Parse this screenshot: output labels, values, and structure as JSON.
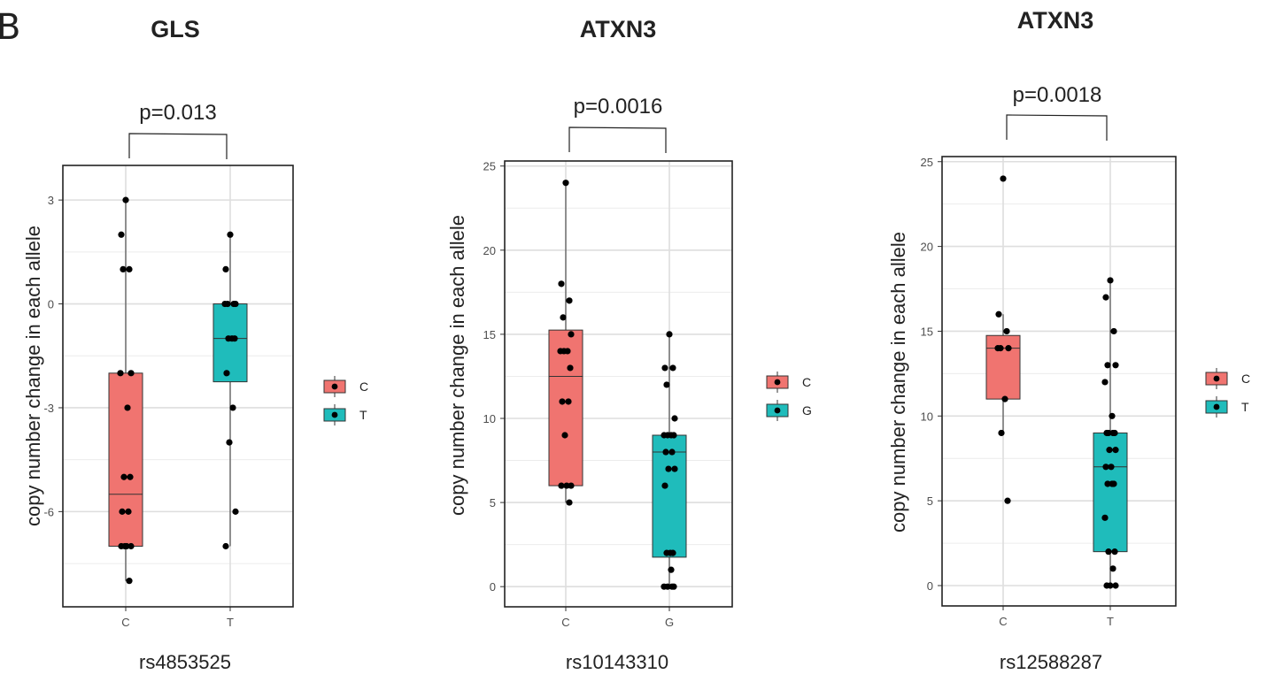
{
  "panel_label": "B",
  "chart_data": [
    {
      "type": "box",
      "title": "GLS",
      "xlabel": "rs4853525",
      "ylabel": "copy number change in each allele",
      "ylim": [
        -8.75,
        4.0
      ],
      "yticks": [
        3,
        0,
        -3,
        -6
      ],
      "grid": true,
      "legend_position": "right",
      "comparison": "p=0.013",
      "categories": [
        "C",
        "T"
      ],
      "colors": [
        "#F07470",
        "#1FBCBB"
      ],
      "boxes": [
        {
          "category": "C",
          "q1": -7,
          "median": -5.5,
          "q3": -2,
          "whisker_low": -8,
          "whisker_high": 3
        },
        {
          "category": "T",
          "q1": -2.25,
          "median": -1,
          "q3": 0,
          "whisker_low": -7,
          "whisker_high": 2
        }
      ],
      "points": [
        {
          "category": "C",
          "values": [
            3,
            2,
            1,
            1,
            -2,
            -2,
            -3,
            -5,
            -5,
            -6,
            -6,
            -7,
            -7,
            -7,
            -7,
            -8
          ]
        },
        {
          "category": "T",
          "values": [
            2,
            1,
            0,
            0,
            0,
            0,
            -1,
            -1,
            -1,
            -2,
            -3,
            -4,
            -6,
            -7
          ]
        }
      ]
    },
    {
      "type": "box",
      "title": "ATXN3",
      "xlabel": "rs10143310",
      "ylabel": "copy number change in each allele",
      "ylim": [
        -1.2,
        25.3
      ],
      "yticks": [
        25,
        20,
        15,
        10,
        5,
        0
      ],
      "grid": true,
      "legend_position": "right",
      "comparison": "p=0.0016",
      "categories": [
        "C",
        "G"
      ],
      "colors": [
        "#F07470",
        "#1FBCBB"
      ],
      "boxes": [
        {
          "category": "C",
          "q1": 6,
          "median": 12.5,
          "q3": 15.25,
          "whisker_low": 5,
          "whisker_high": 24
        },
        {
          "category": "G",
          "q1": 1.75,
          "median": 8,
          "q3": 9,
          "whisker_low": 0,
          "whisker_high": 15
        }
      ],
      "points": [
        {
          "category": "C",
          "values": [
            24,
            18,
            17,
            16,
            15,
            14,
            14,
            14,
            13,
            11,
            11,
            9,
            6,
            6,
            6,
            5
          ]
        },
        {
          "category": "G",
          "values": [
            15,
            13,
            13,
            12,
            10,
            9,
            9,
            9,
            9,
            8,
            8,
            7,
            7,
            6,
            2,
            2,
            2,
            1,
            0,
            0,
            0,
            0
          ]
        }
      ]
    },
    {
      "type": "box",
      "title": "ATXN3",
      "xlabel": "rs12588287",
      "ylabel": "copy number change in each allele",
      "ylim": [
        -1.2,
        25.3
      ],
      "yticks": [
        25,
        20,
        15,
        10,
        5,
        0
      ],
      "grid": true,
      "legend_position": "right",
      "comparison": "p=0.0018",
      "categories": [
        "C",
        "T"
      ],
      "colors": [
        "#F07470",
        "#1FBCBB"
      ],
      "boxes": [
        {
          "category": "C",
          "q1": 11,
          "median": 14,
          "q3": 14.75,
          "whisker_low": 9,
          "whisker_high": 16
        },
        {
          "category": "T",
          "q1": 2,
          "median": 7,
          "q3": 9,
          "whisker_low": 0,
          "whisker_high": 18
        }
      ],
      "points": [
        {
          "category": "C",
          "values": [
            24,
            16,
            15,
            14,
            14,
            14,
            11,
            9,
            5
          ]
        },
        {
          "category": "T",
          "values": [
            18,
            17,
            15,
            13,
            13,
            12,
            10,
            9,
            9,
            9,
            9,
            8,
            8,
            7,
            7,
            6,
            6,
            6,
            4,
            2,
            2,
            1,
            0,
            0,
            0
          ]
        }
      ]
    }
  ]
}
